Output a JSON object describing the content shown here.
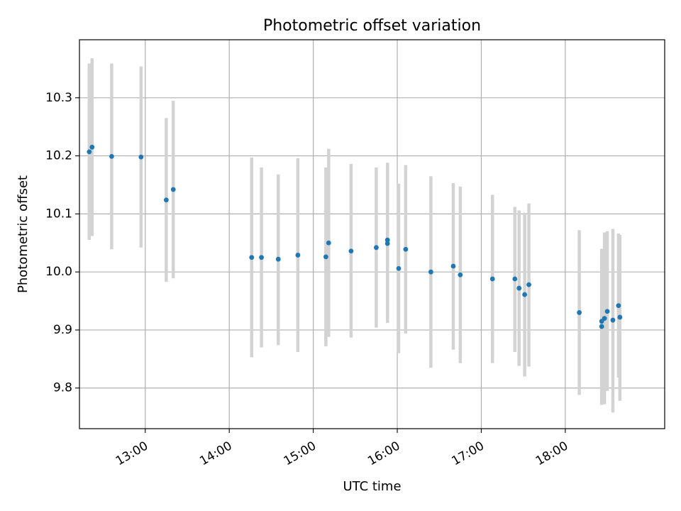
{
  "chart_data": {
    "type": "scatter",
    "title": "Photometric offset variation",
    "xlabel": "UTC time",
    "ylabel": "Photometric offset",
    "x_tick_labels": [
      "13:00",
      "14:00",
      "15:00",
      "16:00",
      "17:00",
      "18:00"
    ],
    "y_tick_labels": [
      "9.8",
      "9.9",
      "10.0",
      "10.1",
      "10.2",
      "10.3"
    ],
    "x_ticks": [
      "13:00",
      "14:00",
      "15:00",
      "16:00",
      "17:00",
      "18:00"
    ],
    "y_ticks": [
      9.8,
      9.9,
      10.0,
      10.1,
      10.2,
      10.3
    ],
    "xlim": [
      "12:13",
      "19:11"
    ],
    "ylim": [
      9.73,
      10.4
    ],
    "grid": true,
    "colors": {
      "points": "#1f77b4",
      "errorbars": "#d3d3d3",
      "grid": "#b0b0b0"
    },
    "series": [
      {
        "points": [
          {
            "x": "12:20",
            "y": 10.207,
            "ymin": 10.055,
            "ymax": 10.359
          },
          {
            "x": "12:22",
            "y": 10.215,
            "ymin": 10.062,
            "ymax": 10.368
          },
          {
            "x": "12:36",
            "y": 10.199,
            "ymin": 10.039,
            "ymax": 10.359
          },
          {
            "x": "12:57",
            "y": 10.198,
            "ymin": 10.042,
            "ymax": 10.354
          },
          {
            "x": "13:15",
            "y": 10.124,
            "ymin": 9.983,
            "ymax": 10.265
          },
          {
            "x": "13:20",
            "y": 10.142,
            "ymin": 9.989,
            "ymax": 10.295
          },
          {
            "x": "14:16",
            "y": 10.025,
            "ymin": 9.853,
            "ymax": 10.197
          },
          {
            "x": "14:23",
            "y": 10.025,
            "ymin": 9.87,
            "ymax": 10.18
          },
          {
            "x": "14:35",
            "y": 10.022,
            "ymin": 9.874,
            "ymax": 10.168
          },
          {
            "x": "14:49",
            "y": 10.029,
            "ymin": 9.862,
            "ymax": 10.196
          },
          {
            "x": "15:09",
            "y": 10.026,
            "ymin": 9.872,
            "ymax": 10.18
          },
          {
            "x": "15:11",
            "y": 10.05,
            "ymin": 9.888,
            "ymax": 10.212
          },
          {
            "x": "15:27",
            "y": 10.036,
            "ymin": 9.887,
            "ymax": 10.186
          },
          {
            "x": "15:45",
            "y": 10.042,
            "ymin": 9.904,
            "ymax": 10.18
          },
          {
            "x": "15:53",
            "y": 10.055,
            "ymin": 9.912,
            "ymax": 10.188
          },
          {
            "x": "15:53",
            "y": 10.049,
            "ymin": 9.92,
            "ymax": 10.178
          },
          {
            "x": "16:01",
            "y": 10.006,
            "ymin": 9.86,
            "ymax": 10.152
          },
          {
            "x": "16:06",
            "y": 10.039,
            "ymin": 9.894,
            "ymax": 10.184
          },
          {
            "x": "16:24",
            "y": 10.0,
            "ymin": 9.835,
            "ymax": 10.165
          },
          {
            "x": "16:40",
            "y": 10.01,
            "ymin": 9.866,
            "ymax": 10.153
          },
          {
            "x": "16:45",
            "y": 9.995,
            "ymin": 9.843,
            "ymax": 10.147
          },
          {
            "x": "17:08",
            "y": 9.988,
            "ymin": 9.843,
            "ymax": 10.133
          },
          {
            "x": "17:24",
            "y": 9.988,
            "ymin": 9.862,
            "ymax": 10.112
          },
          {
            "x": "17:27",
            "y": 9.972,
            "ymin": 9.838,
            "ymax": 10.106
          },
          {
            "x": "17:31",
            "y": 9.961,
            "ymin": 9.82,
            "ymax": 10.102
          },
          {
            "x": "17:34",
            "y": 9.978,
            "ymin": 9.837,
            "ymax": 10.118
          },
          {
            "x": "18:10",
            "y": 9.93,
            "ymin": 9.788,
            "ymax": 10.072
          },
          {
            "x": "18:26",
            "y": 9.915,
            "ymin": 9.775,
            "ymax": 10.03
          },
          {
            "x": "18:26",
            "y": 9.906,
            "ymin": 9.771,
            "ymax": 10.04
          },
          {
            "x": "18:28",
            "y": 9.92,
            "ymin": 9.772,
            "ymax": 10.068
          },
          {
            "x": "18:30",
            "y": 9.932,
            "ymin": 9.795,
            "ymax": 10.07
          },
          {
            "x": "18:34",
            "y": 9.917,
            "ymin": 9.758,
            "ymax": 10.074
          },
          {
            "x": "18:38",
            "y": 9.942,
            "ymin": 9.818,
            "ymax": 10.066
          },
          {
            "x": "18:39",
            "y": 9.922,
            "ymin": 9.778,
            "ymax": 10.064
          }
        ]
      }
    ]
  }
}
